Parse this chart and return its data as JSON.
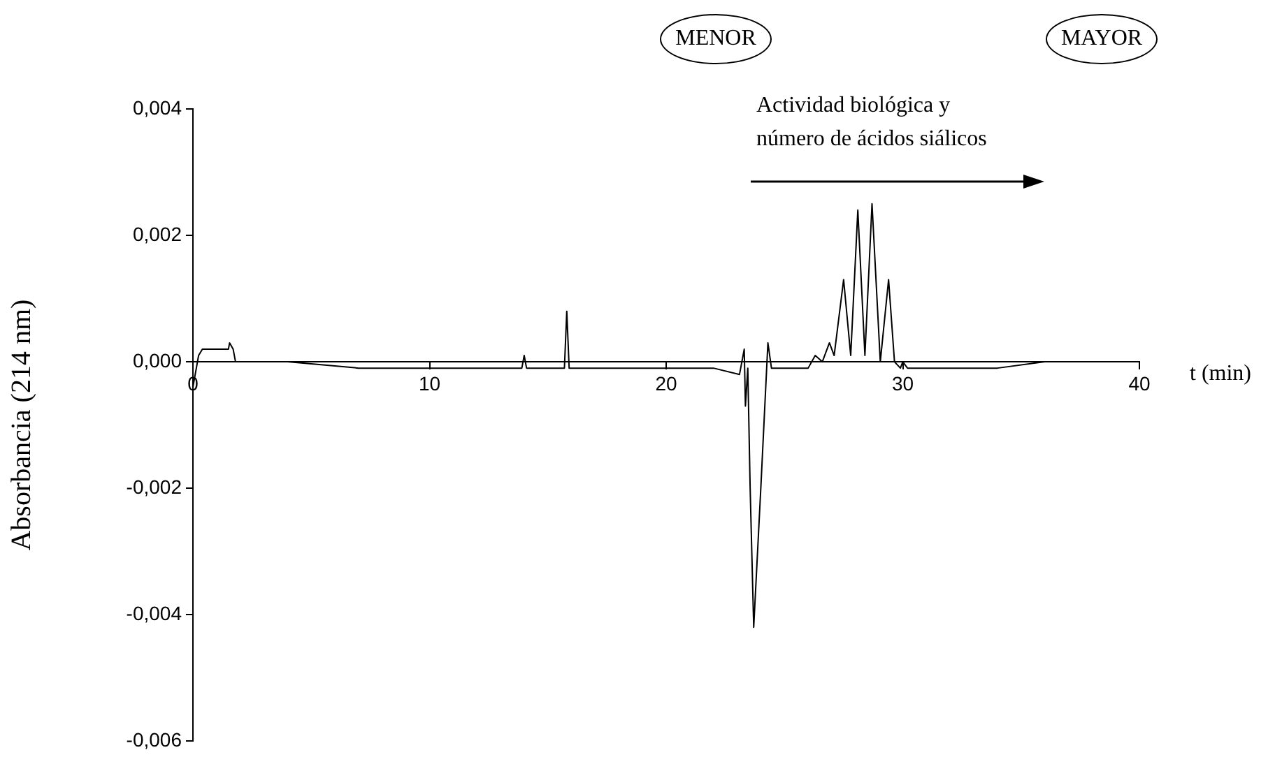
{
  "chart_data": {
    "type": "line",
    "ylabel": "Absorbancia (214 nm)",
    "xlabel": "t (min)",
    "annotations": [
      "MENOR",
      "MAYOR",
      "Actividad biológica y\nnúmero de ácidos siálicos"
    ],
    "x": [
      0,
      0.24,
      0.4,
      1.0,
      1.5,
      1.55,
      1.7,
      1.8,
      1.95,
      4,
      7,
      10,
      12,
      13.9,
      14.0,
      14.1,
      15.7,
      15.8,
      15.9,
      16.3,
      18,
      20,
      22,
      23.1,
      23.3,
      23.35,
      23.45,
      23.55,
      23.7,
      24.0,
      24.3,
      24.45,
      25,
      26,
      26.3,
      26.6,
      26.9,
      27.1,
      27.5,
      27.8,
      28.1,
      28.4,
      28.7,
      29.05,
      29.4,
      29.65,
      29.9,
      30.0,
      30.2,
      32,
      34,
      36,
      37.2
    ],
    "values": [
      -0.0004,
      0.0001,
      0.0002,
      0.0002,
      0.0002,
      0.0003,
      0.0002,
      0,
      0,
      0,
      -0.0001,
      -0.0001,
      -0.0001,
      -0.0001,
      0.0001,
      -0.0001,
      -0.0001,
      0.0008,
      -0.0001,
      -0.0001,
      -0.0001,
      -0.0001,
      -0.0001,
      -0.0002,
      0.0002,
      -0.0007,
      -0.0001,
      -0.002,
      -0.0042,
      -0.002,
      0.0003,
      -0.0001,
      -0.0001,
      -0.0001,
      0.0001,
      0,
      0.0003,
      0.0001,
      0.0013,
      0.0001,
      0.0024,
      0.0001,
      0.0025,
      0,
      0.0013,
      0,
      -0.0001,
      0,
      -0.0001,
      -0.0001,
      -0.0001,
      0,
      0
    ],
    "color": "#000000",
    "marker": "none",
    "line_style": "solid",
    "grid": false,
    "legend": false,
    "xlim": [
      0,
      40
    ],
    "xticks": [
      0,
      10,
      20,
      30,
      40
    ],
    "ylim": [
      -0.006,
      0.004
    ],
    "yticks": [
      {
        "value": -0.006,
        "label": "-0,006"
      },
      {
        "value": -0.004,
        "label": "-0,004"
      },
      {
        "value": -0.002,
        "label": "-0,002"
      },
      {
        "value": 0,
        "label": "0,000"
      },
      {
        "value": 0.002,
        "label": "0,002"
      },
      {
        "value": 0.004,
        "label": "0,004"
      }
    ]
  }
}
